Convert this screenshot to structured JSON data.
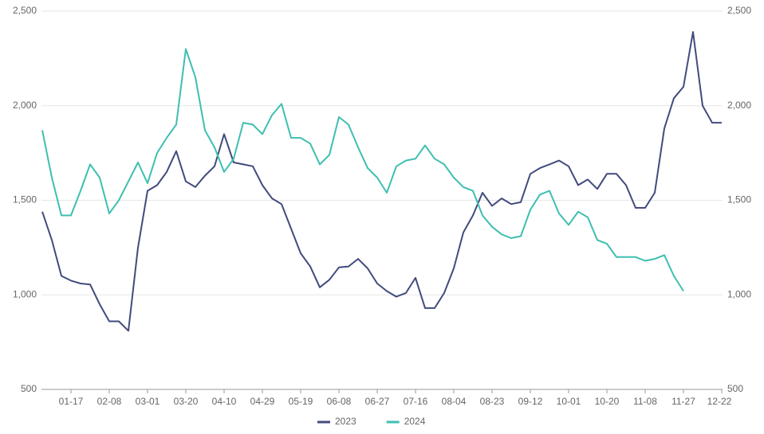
{
  "chart_data": {
    "type": "line",
    "categories": [
      null,
      null,
      null,
      "01-17",
      null,
      null,
      null,
      "02-08",
      null,
      null,
      null,
      "03-01",
      null,
      null,
      null,
      "03-20",
      null,
      null,
      null,
      "04-10",
      null,
      null,
      null,
      "04-29",
      null,
      null,
      null,
      "05-19",
      null,
      null,
      null,
      "06-08",
      null,
      null,
      null,
      "06-27",
      null,
      null,
      null,
      "07-16",
      null,
      null,
      null,
      "08-04",
      null,
      null,
      null,
      "08-23",
      null,
      null,
      null,
      "09-12",
      null,
      null,
      null,
      "10-01",
      null,
      null,
      null,
      "10-20",
      null,
      null,
      null,
      "11-08",
      null,
      null,
      null,
      "11-27",
      null,
      null,
      null,
      "12-22"
    ],
    "series": [
      {
        "name": "2023",
        "color": "#414b7d",
        "values": [
          1440,
          1290,
          1100,
          1075,
          1060,
          1055,
          950,
          860,
          860,
          810,
          1250,
          1550,
          1580,
          1650,
          1760,
          1600,
          1570,
          1630,
          1680,
          1850,
          1700,
          1690,
          1680,
          1580,
          1510,
          1480,
          1350,
          1220,
          1150,
          1040,
          1080,
          1145,
          1150,
          1190,
          1140,
          1060,
          1020,
          990,
          1010,
          1090,
          930,
          930,
          1010,
          1140,
          1330,
          1420,
          1540,
          1470,
          1510,
          1480,
          1490,
          1640,
          1670,
          1690,
          1710,
          1680,
          1580,
          1610,
          1560,
          1640,
          1640,
          1580,
          1460,
          1460,
          1540,
          1880,
          2040,
          2100,
          2390,
          2000,
          1910,
          1910
        ]
      },
      {
        "name": "2024",
        "color": "#3dbfb0",
        "values": [
          1870,
          1620,
          1420,
          1420,
          1550,
          1690,
          1620,
          1430,
          1500,
          1600,
          1700,
          1590,
          1750,
          1830,
          1900,
          2300,
          2150,
          1870,
          1780,
          1650,
          1720,
          1910,
          1900,
          1850,
          1950,
          2010,
          1830,
          1830,
          1800,
          1690,
          1740,
          1940,
          1900,
          1780,
          1670,
          1620,
          1540,
          1680,
          1710,
          1720,
          1790,
          1720,
          1690,
          1620,
          1570,
          1550,
          1420,
          1360,
          1320,
          1300,
          1310,
          1450,
          1530,
          1550,
          1430,
          1370,
          1440,
          1410,
          1290,
          1270,
          1200,
          1200,
          1200,
          1180,
          1190,
          1210,
          1100,
          1020,
          null,
          null,
          null,
          null
        ]
      }
    ],
    "ylim": [
      500,
      2500
    ],
    "yticks": [
      500,
      {
        "value": 1000,
        "label": "1,000"
      },
      {
        "value": 1500,
        "label": "1,500"
      },
      {
        "value": 2000,
        "label": "2,000"
      },
      {
        "value": 2500,
        "label": "2,500"
      }
    ],
    "y2lim": [
      500,
      2500
    ],
    "y2ticks": [
      500,
      {
        "value": 1000,
        "label": "1,000"
      },
      {
        "value": 1500,
        "label": "1,500"
      },
      {
        "value": 2000,
        "label": "2,000"
      },
      {
        "value": 2500,
        "label": "2,500"
      }
    ],
    "grid": true,
    "legend": "bottom"
  }
}
